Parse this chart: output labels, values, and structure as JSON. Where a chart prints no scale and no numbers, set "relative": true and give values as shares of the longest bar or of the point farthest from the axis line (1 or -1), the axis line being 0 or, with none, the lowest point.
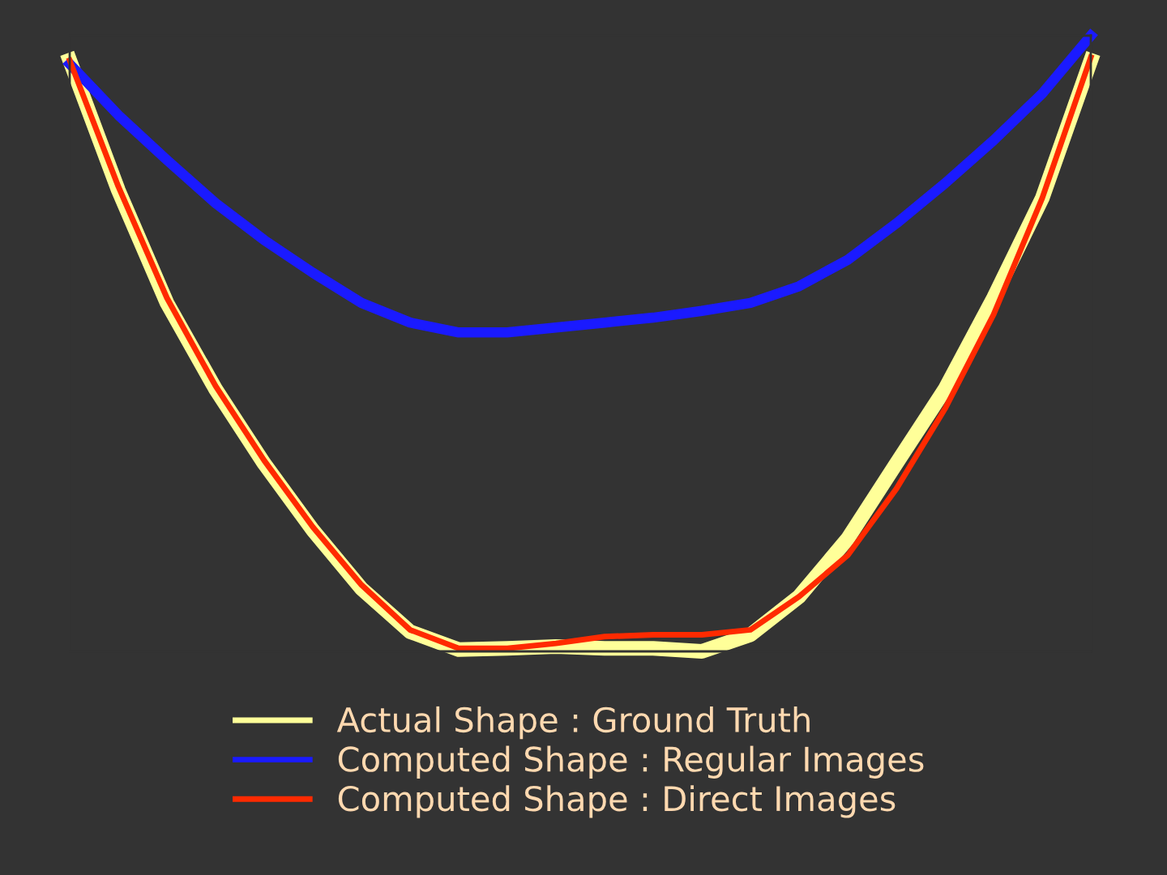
{
  "chart_data": {
    "type": "line",
    "relative": true,
    "legend": "bottom",
    "marker": "none",
    "line_style": "solid",
    "categories": [
      null,
      null,
      null,
      null,
      null,
      null,
      null,
      null,
      null,
      null,
      null,
      null,
      null,
      null,
      null,
      null,
      null,
      null,
      null,
      null,
      null,
      null
    ],
    "series": [
      {
        "name": "Actual Shape : Ground Truth",
        "color": "#ffff99",
        "values": [
          0.96,
          0.749,
          0.566,
          0.426,
          0.305,
          0.197,
          0.102,
          0.032,
          0.003,
          0.005,
          0.008,
          0.005,
          0.005,
          0,
          0.027,
          0.089,
          0.183,
          0.305,
          0.426,
          0.574,
          0.736,
          0.96
        ]
      },
      {
        "name": "Computed Shape : Regular Images",
        "color": "#1a1aff",
        "values": [
          0.954,
          0.871,
          0.798,
          0.728,
          0.668,
          0.615,
          0.566,
          0.534,
          0.518,
          0.518,
          0.526,
          0.534,
          0.542,
          0.553,
          0.566,
          0.593,
          0.636,
          0.695,
          0.76,
          0.83,
          0.906,
          1
        ]
      },
      {
        "name": "Computed Shape : Direct Images",
        "color": "#ff2a00",
        "values": [
          0.96,
          0.755,
          0.574,
          0.431,
          0.31,
          0.202,
          0.108,
          0.035,
          0.005,
          0.005,
          0.013,
          0.024,
          0.027,
          0.027,
          0.035,
          0.089,
          0.156,
          0.264,
          0.394,
          0.547,
          0.736,
          0.965
        ]
      }
    ]
  }
}
